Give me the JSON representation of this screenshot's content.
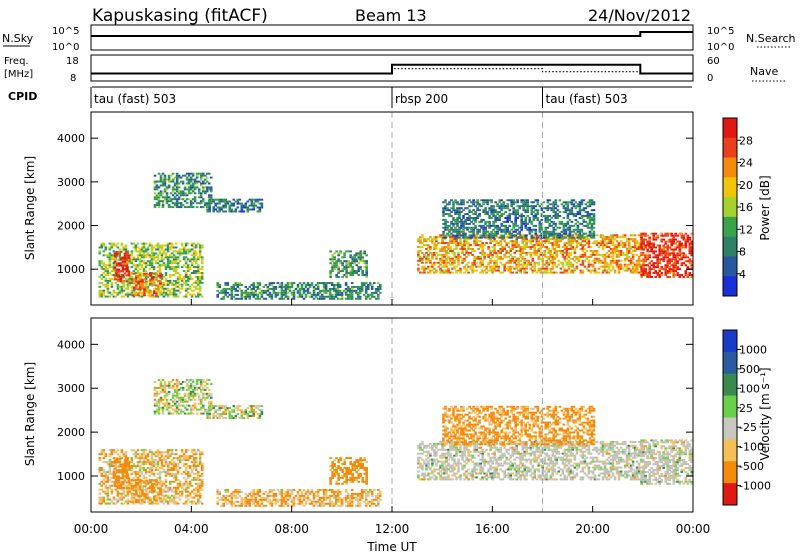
{
  "header": {
    "station": "Kapuskasing (fitACF)",
    "beam": "Beam 13",
    "date": "24/Nov/2012"
  },
  "nsky_panel": {
    "left_label": "N.Sky",
    "left_ticks": [
      "10^5",
      "10^0"
    ],
    "right_label": "N.Search",
    "right_ticks": [
      "10^5",
      "10^0"
    ]
  },
  "freq_panel": {
    "left_label_line1": "Freq.",
    "left_label_line2": "[MHz]",
    "left_ticks": [
      "18",
      "8"
    ],
    "right_label": "Nave",
    "right_ticks": [
      "60",
      "0"
    ]
  },
  "cpid_panel": {
    "label": "CPID",
    "segments": [
      {
        "label": "tau (fast) 503",
        "start_hour": 0
      },
      {
        "label": "rbsp 200",
        "start_hour": 12
      },
      {
        "label": "tau (fast) 503",
        "start_hour": 18
      }
    ]
  },
  "power_panel": {
    "ylabel": "Slant Range [km]",
    "colorbar_label": "Power [dB]",
    "colorbar_ticks": [
      "28",
      "24",
      "20",
      "16",
      "12",
      "8",
      "4"
    ]
  },
  "velocity_panel": {
    "ylabel": "Slant Range [km]",
    "colorbar_label": "Velocity [m s⁻¹]",
    "colorbar_ticks": [
      "1000",
      "500",
      "100",
      "25",
      "-25",
      "-100",
      "-500",
      "-1000"
    ]
  },
  "xaxis": {
    "label": "Time UT",
    "ticks": [
      "00:00",
      "04:00",
      "08:00",
      "12:00",
      "16:00",
      "20:00",
      "00:00"
    ]
  },
  "chart_data": {
    "type": "heatmap",
    "title": "Kapuskasing (fitACF)  Beam 13  24/Nov/2012",
    "xlabel": "Time UT",
    "ylabel": "Slant Range [km]",
    "xlim_hours": [
      0,
      24
    ],
    "ylim_km": [
      180,
      4600
    ],
    "y_ticks_km": [
      1000,
      2000,
      3000,
      4000
    ],
    "mode_change_hours": [
      12,
      18
    ],
    "nsky_level_log10": [
      {
        "start_hour": 0,
        "end_hour": 21.9,
        "value": 3
      },
      {
        "start_hour": 21.9,
        "end_hour": 24,
        "value": 4
      }
    ],
    "frequency_mhz": [
      {
        "start_hour": 0,
        "end_hour": 12,
        "value": 10.5
      },
      {
        "start_hour": 12,
        "end_hour": 21.9,
        "value": 14.5
      },
      {
        "start_hour": 21.9,
        "end_hour": 24,
        "value": 10.5
      }
    ],
    "nave": [
      {
        "start_hour": 0,
        "end_hour": 12,
        "value": 15
      },
      {
        "start_hour": 12,
        "end_hour": 18,
        "value": 28
      },
      {
        "start_hour": 18,
        "end_hour": 21.9,
        "value": 20
      },
      {
        "start_hour": 21.9,
        "end_hour": 24,
        "value": 15
      }
    ],
    "power_colorbar_db": [
      4,
      8,
      12,
      16,
      20,
      24,
      28
    ],
    "velocity_colorbar_ms": [
      -1000,
      -500,
      -100,
      -25,
      25,
      100,
      500,
      1000
    ],
    "colors": {
      "power_scale": [
        "#1a2fd6",
        "#28579e",
        "#2d8066",
        "#3aa34a",
        "#a6d22e",
        "#f2c40a",
        "#f28a0c",
        "#e8401a",
        "#e01812"
      ],
      "velocity_scale": [
        "#e01812",
        "#f28a0c",
        "#f5c055",
        "#c8c8c0",
        "#6ad04a",
        "#3a8a50",
        "#2a5aa0",
        "#1a3ac8"
      ],
      "ground_scatter": "#c0c0b4"
    },
    "scatter_regions": [
      {
        "name": "early-near",
        "t0": 0.3,
        "t1": 4.4,
        "r0": 350,
        "r1": 1600,
        "power": 14,
        "velocity": -80
      },
      {
        "name": "early-core",
        "t0": 0.9,
        "t1": 1.5,
        "r0": 700,
        "r1": 1400,
        "power": 26,
        "velocity": -300
      },
      {
        "name": "early-low",
        "t0": 1.6,
        "t1": 2.8,
        "r0": 380,
        "r1": 900,
        "power": 22,
        "velocity": -150
      },
      {
        "name": "far-patch",
        "t0": 2.5,
        "t1": 4.8,
        "r0": 2400,
        "r1": 3200,
        "power": 9,
        "velocity": 10
      },
      {
        "name": "far-patch-2",
        "t0": 4.6,
        "t1": 6.8,
        "r0": 2300,
        "r1": 2600,
        "power": 8,
        "velocity": 10
      },
      {
        "name": "evening-mid",
        "t0": 9.5,
        "t1": 11.0,
        "r0": 800,
        "r1": 1400,
        "power": 10,
        "velocity": -200
      },
      {
        "name": "evening-low",
        "t0": 5.0,
        "t1": 11.5,
        "r0": 300,
        "r1": 700,
        "power": 9,
        "velocity": -100
      },
      {
        "name": "post-midnight",
        "t0": 13.0,
        "t1": 22.0,
        "r0": 900,
        "r1": 1800,
        "power": 20,
        "velocity": 5
      },
      {
        "name": "post-midnight-upper",
        "t0": 14.0,
        "t1": 20.0,
        "r0": 1700,
        "r1": 2600,
        "power": 8,
        "velocity": -150
      },
      {
        "name": "late",
        "t0": 21.9,
        "t1": 24.0,
        "r0": 800,
        "r1": 1800,
        "power": 26,
        "velocity": 10
      }
    ]
  }
}
